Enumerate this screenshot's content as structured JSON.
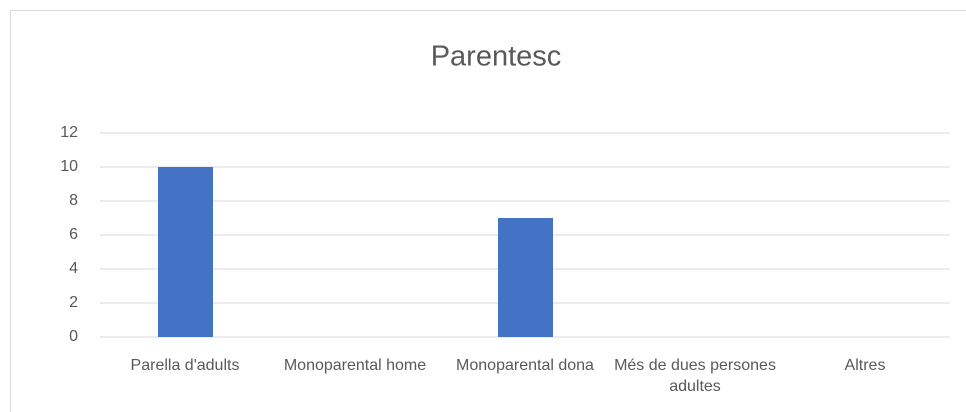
{
  "chart_data": {
    "type": "bar",
    "title": "Parentesc",
    "categories": [
      "Parella d'adults",
      "Monoparental home",
      "Monoparental dona",
      "Més de dues persones adultes",
      "Altres"
    ],
    "values": [
      10,
      0,
      7,
      0,
      0
    ],
    "color": "#4472c4",
    "ylim": [
      0,
      12
    ],
    "yticks": [
      0,
      2,
      4,
      6,
      8,
      10,
      12
    ],
    "grid": true
  }
}
